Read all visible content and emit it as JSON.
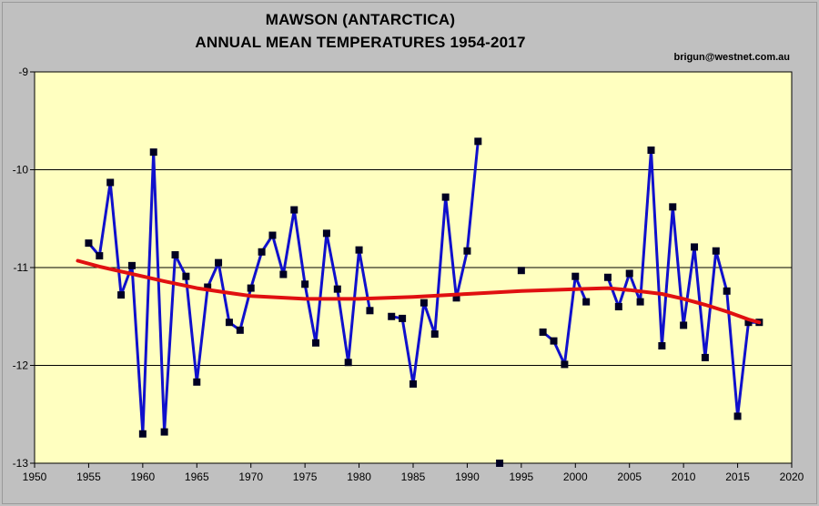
{
  "title": "MAWSON (ANTARCTICA)",
  "subtitle": "ANNUAL MEAN TEMPERATURES  1954-2017",
  "credit": "brigun@westnet.com.au",
  "chart_data": {
    "type": "line",
    "title": "MAWSON (ANTARCTICA)",
    "subtitle": "ANNUAL MEAN TEMPERATURES  1954-2017",
    "xlabel": "",
    "ylabel": "",
    "xlim": [
      1950,
      2020
    ],
    "ylim": [
      -13,
      -9
    ],
    "x_ticks": [
      1950,
      1955,
      1960,
      1965,
      1970,
      1975,
      1980,
      1985,
      1990,
      1995,
      2000,
      2005,
      2010,
      2015,
      2020
    ],
    "y_ticks": [
      -9,
      -10,
      -11,
      -12,
      -13
    ],
    "grid": "horizontal",
    "legend": "none",
    "colors": {
      "series": "#1010cc",
      "marker": "#000022",
      "trend": "#e01010",
      "plot_bg": "#ffffc0",
      "frame_bg": "#c0c0c0"
    },
    "series": [
      {
        "points": [
          [
            1955,
            -10.75
          ],
          [
            1956,
            -10.88
          ],
          [
            1957,
            -10.13
          ],
          [
            1958,
            -11.28
          ],
          [
            1959,
            -10.98
          ],
          [
            1960,
            -12.7
          ],
          [
            1961,
            -9.82
          ],
          [
            1962,
            -12.68
          ],
          [
            1963,
            -10.87
          ],
          [
            1964,
            -11.09
          ],
          [
            1965,
            -12.17
          ],
          [
            1966,
            -11.2
          ],
          [
            1967,
            -10.95
          ],
          [
            1968,
            -11.56
          ],
          [
            1969,
            -11.64
          ],
          [
            1970,
            -11.21
          ],
          [
            1971,
            -10.84
          ],
          [
            1972,
            -10.67
          ],
          [
            1973,
            -11.07
          ],
          [
            1974,
            -10.41
          ],
          [
            1975,
            -11.17
          ],
          [
            1976,
            -11.77
          ],
          [
            1977,
            -10.65
          ],
          [
            1978,
            -11.22
          ],
          [
            1979,
            -11.97
          ],
          [
            1980,
            -10.82
          ],
          [
            1981,
            -11.44
          ],
          [
            1982,
            null
          ],
          [
            1983,
            -11.5
          ],
          [
            1984,
            -11.52
          ],
          [
            1985,
            -12.19
          ],
          [
            1986,
            -11.36
          ],
          [
            1987,
            -11.68
          ],
          [
            1988,
            -10.28
          ],
          [
            1989,
            -11.31
          ],
          [
            1990,
            -10.83
          ],
          [
            1991,
            -9.71
          ],
          [
            1992,
            null
          ],
          [
            1993,
            -13.0
          ],
          [
            1994,
            null
          ],
          [
            1995,
            -11.03
          ],
          [
            1996,
            null
          ],
          [
            1997,
            -11.66
          ],
          [
            1998,
            -11.75
          ],
          [
            1999,
            -11.99
          ],
          [
            2000,
            -11.09
          ],
          [
            2001,
            -11.35
          ],
          [
            2002,
            null
          ],
          [
            2003,
            -11.1
          ],
          [
            2004,
            -11.4
          ],
          [
            2005,
            -11.06
          ],
          [
            2006,
            -11.35
          ],
          [
            2007,
            -9.8
          ],
          [
            2008,
            -11.8
          ],
          [
            2009,
            -10.38
          ],
          [
            2010,
            -11.59
          ],
          [
            2011,
            -10.79
          ],
          [
            2012,
            -11.92
          ],
          [
            2013,
            -10.83
          ],
          [
            2014,
            -11.24
          ],
          [
            2015,
            -12.52
          ],
          [
            2016,
            -11.56
          ],
          [
            2017,
            -11.56
          ]
        ]
      },
      {
        "type": "trend",
        "points": [
          [
            1954,
            -10.93
          ],
          [
            1956,
            -10.99
          ],
          [
            1958,
            -11.04
          ],
          [
            1960,
            -11.09
          ],
          [
            1962,
            -11.14
          ],
          [
            1965,
            -11.21
          ],
          [
            1968,
            -11.26
          ],
          [
            1970,
            -11.29
          ],
          [
            1975,
            -11.32
          ],
          [
            1980,
            -11.32
          ],
          [
            1985,
            -11.3
          ],
          [
            1990,
            -11.27
          ],
          [
            1995,
            -11.24
          ],
          [
            2000,
            -11.22
          ],
          [
            2003,
            -11.21
          ],
          [
            2005,
            -11.23
          ],
          [
            2008,
            -11.27
          ],
          [
            2010,
            -11.32
          ],
          [
            2012,
            -11.38
          ],
          [
            2014,
            -11.45
          ],
          [
            2016,
            -11.53
          ],
          [
            2017,
            -11.56
          ]
        ]
      }
    ]
  }
}
